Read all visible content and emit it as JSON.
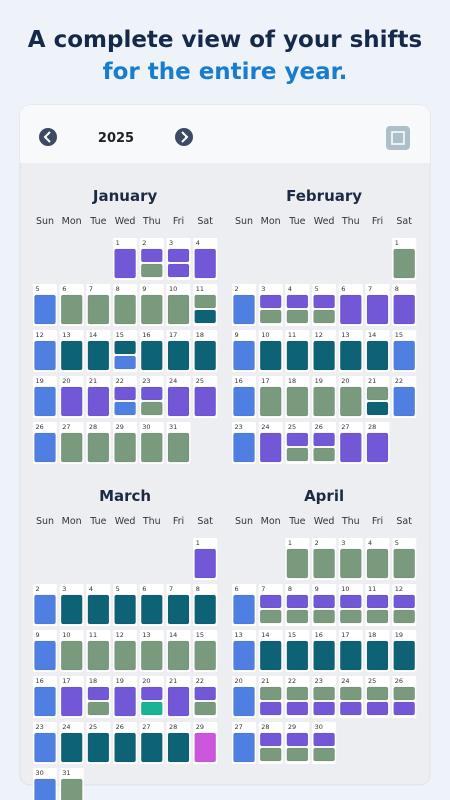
{
  "header": {
    "line1": "A complete view of your shifts",
    "line2": "for the entire year."
  },
  "year": "2025",
  "weekdays": [
    "Sun",
    "Mon",
    "Tue",
    "Wed",
    "Thu",
    "Fri",
    "Sat"
  ],
  "shift_colors": {
    "P": "#7257d6",
    "G": "#7a9a7d",
    "T": "#0e6275",
    "B": "#4f80e1",
    "M": "#19b395",
    "K": "#cc57de"
  },
  "months": [
    {
      "name": "January",
      "days": [
        null,
        null,
        null,
        {
          "n": "1",
          "s": "P"
        },
        {
          "n": "2",
          "s": "PG"
        },
        {
          "n": "3",
          "s": "PP"
        },
        {
          "n": "4",
          "s": "P"
        },
        {
          "n": "5",
          "s": "B"
        },
        {
          "n": "6",
          "s": "G"
        },
        {
          "n": "7",
          "s": "G"
        },
        {
          "n": "8",
          "s": "G"
        },
        {
          "n": "9",
          "s": "G"
        },
        {
          "n": "10",
          "s": "G"
        },
        {
          "n": "11",
          "s": "GT"
        },
        {
          "n": "12",
          "s": "B"
        },
        {
          "n": "13",
          "s": "T"
        },
        {
          "n": "14",
          "s": "T"
        },
        {
          "n": "15",
          "s": "TB"
        },
        {
          "n": "16",
          "s": "T"
        },
        {
          "n": "17",
          "s": "T"
        },
        {
          "n": "18",
          "s": "T"
        },
        {
          "n": "19",
          "s": "B"
        },
        {
          "n": "20",
          "s": "P"
        },
        {
          "n": "21",
          "s": "P"
        },
        {
          "n": "22",
          "s": "PB"
        },
        {
          "n": "23",
          "s": "PG"
        },
        {
          "n": "24",
          "s": "P"
        },
        {
          "n": "25",
          "s": "P"
        },
        {
          "n": "26",
          "s": "B"
        },
        {
          "n": "27",
          "s": "G"
        },
        {
          "n": "28",
          "s": "G"
        },
        {
          "n": "29",
          "s": "G"
        },
        {
          "n": "30",
          "s": "G"
        },
        {
          "n": "31",
          "s": "G"
        }
      ]
    },
    {
      "name": "February",
      "days": [
        null,
        null,
        null,
        null,
        null,
        null,
        {
          "n": "1",
          "s": "G"
        },
        {
          "n": "2",
          "s": "B"
        },
        {
          "n": "3",
          "s": "PG"
        },
        {
          "n": "4",
          "s": "PG"
        },
        {
          "n": "5",
          "s": "PG"
        },
        {
          "n": "6",
          "s": "P"
        },
        {
          "n": "7",
          "s": "P"
        },
        {
          "n": "8",
          "s": "P"
        },
        {
          "n": "9",
          "s": "B"
        },
        {
          "n": "10",
          "s": "T"
        },
        {
          "n": "11",
          "s": "T"
        },
        {
          "n": "12",
          "s": "T"
        },
        {
          "n": "13",
          "s": "T"
        },
        {
          "n": "14",
          "s": "T"
        },
        {
          "n": "15",
          "s": "B"
        },
        {
          "n": "16",
          "s": "B"
        },
        {
          "n": "17",
          "s": "G"
        },
        {
          "n": "18",
          "s": "G"
        },
        {
          "n": "19",
          "s": "G"
        },
        {
          "n": "20",
          "s": "G"
        },
        {
          "n": "21",
          "s": "GT"
        },
        {
          "n": "22",
          "s": "B"
        },
        {
          "n": "23",
          "s": "B"
        },
        {
          "n": "24",
          "s": "P"
        },
        {
          "n": "25",
          "s": "PG"
        },
        {
          "n": "26",
          "s": "PG"
        },
        {
          "n": "27",
          "s": "P"
        },
        {
          "n": "28",
          "s": "P"
        }
      ]
    },
    {
      "name": "March",
      "days": [
        null,
        null,
        null,
        null,
        null,
        null,
        {
          "n": "1",
          "s": "P"
        },
        {
          "n": "2",
          "s": "B"
        },
        {
          "n": "3",
          "s": "T"
        },
        {
          "n": "4",
          "s": "T"
        },
        {
          "n": "5",
          "s": "T"
        },
        {
          "n": "6",
          "s": "T"
        },
        {
          "n": "7",
          "s": "T"
        },
        {
          "n": "8",
          "s": "T"
        },
        {
          "n": "9",
          "s": "B"
        },
        {
          "n": "10",
          "s": "G"
        },
        {
          "n": "11",
          "s": "G"
        },
        {
          "n": "12",
          "s": "G"
        },
        {
          "n": "13",
          "s": "G"
        },
        {
          "n": "14",
          "s": "G"
        },
        {
          "n": "15",
          "s": "G"
        },
        {
          "n": "16",
          "s": "B"
        },
        {
          "n": "17",
          "s": "P"
        },
        {
          "n": "18",
          "s": "PG"
        },
        {
          "n": "19",
          "s": "P"
        },
        {
          "n": "20",
          "s": "PM"
        },
        {
          "n": "21",
          "s": "P"
        },
        {
          "n": "22",
          "s": "PG"
        },
        {
          "n": "23",
          "s": "B"
        },
        {
          "n": "24",
          "s": "T"
        },
        {
          "n": "25",
          "s": "T"
        },
        {
          "n": "26",
          "s": "T"
        },
        {
          "n": "27",
          "s": "T"
        },
        {
          "n": "28",
          "s": "T"
        },
        {
          "n": "29",
          "s": "K"
        },
        {
          "n": "30",
          "s": "B"
        },
        {
          "n": "31",
          "s": "G"
        }
      ]
    },
    {
      "name": "April",
      "days": [
        null,
        null,
        {
          "n": "1",
          "s": "G"
        },
        {
          "n": "2",
          "s": "G"
        },
        {
          "n": "3",
          "s": "G"
        },
        {
          "n": "4",
          "s": "G"
        },
        {
          "n": "5",
          "s": "G"
        },
        {
          "n": "6",
          "s": "B"
        },
        {
          "n": "7",
          "s": "PG"
        },
        {
          "n": "8",
          "s": "PG"
        },
        {
          "n": "9",
          "s": "PG"
        },
        {
          "n": "10",
          "s": "PG"
        },
        {
          "n": "11",
          "s": "PG"
        },
        {
          "n": "12",
          "s": "PG"
        },
        {
          "n": "13",
          "s": "B"
        },
        {
          "n": "14",
          "s": "T"
        },
        {
          "n": "15",
          "s": "T"
        },
        {
          "n": "16",
          "s": "T"
        },
        {
          "n": "17",
          "s": "T"
        },
        {
          "n": "18",
          "s": "T"
        },
        {
          "n": "19",
          "s": "T"
        },
        {
          "n": "20",
          "s": "B"
        },
        {
          "n": "21",
          "s": "GP"
        },
        {
          "n": "22",
          "s": "GP"
        },
        {
          "n": "23",
          "s": "GP"
        },
        {
          "n": "24",
          "s": "GP"
        },
        {
          "n": "25",
          "s": "GP"
        },
        {
          "n": "26",
          "s": "GP"
        },
        {
          "n": "27",
          "s": "B"
        },
        {
          "n": "28",
          "s": "PG"
        },
        {
          "n": "29",
          "s": "PG"
        },
        {
          "n": "30",
          "s": "PG"
        }
      ]
    }
  ]
}
